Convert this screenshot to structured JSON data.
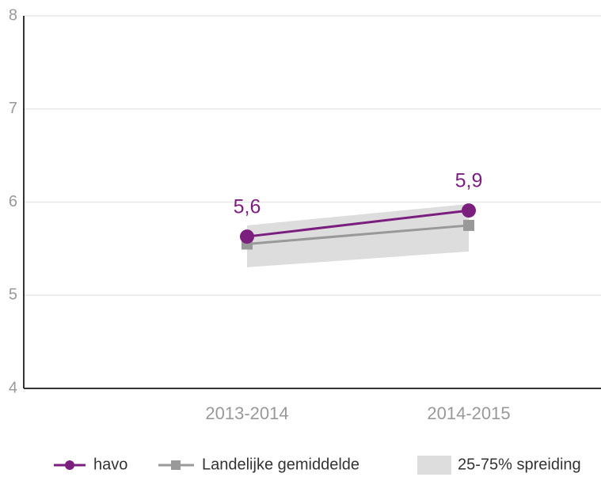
{
  "chart_data": {
    "type": "line",
    "categories": [
      "2013-2014",
      "2014-2015"
    ],
    "ylim": [
      4,
      8
    ],
    "yticks": [
      4,
      5,
      6,
      7,
      8
    ],
    "grid": true,
    "series": [
      {
        "name": "havo",
        "color": "#7b1f7e",
        "values": [
          5.63,
          5.91
        ],
        "value_labels": [
          "5,6",
          "5,9"
        ]
      },
      {
        "name": "Landelijke gemiddelde",
        "color": "#999999",
        "values": [
          5.55,
          5.75
        ]
      }
    ],
    "band": {
      "name": "25-75% spreiding",
      "color": "#dddddd",
      "low": [
        5.3,
        5.47
      ],
      "high": [
        5.75,
        5.98
      ]
    }
  }
}
